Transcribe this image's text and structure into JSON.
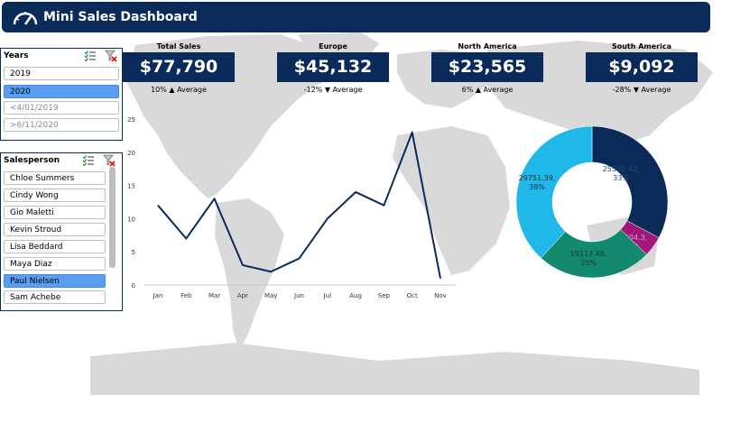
{
  "header": {
    "title": "Mini Sales Dashboard",
    "icon": "gauge-icon"
  },
  "years_slicer": {
    "title": "Years",
    "items": [
      {
        "label": "2019",
        "state": "normal"
      },
      {
        "label": "2020",
        "state": "selected"
      },
      {
        "label": "<4/01/2019",
        "state": "dim"
      },
      {
        "label": ">6/11/2020",
        "state": "dim"
      }
    ]
  },
  "sales_slicer": {
    "title": "Salesperson",
    "items": [
      {
        "label": "Chloe Summers",
        "state": "normal"
      },
      {
        "label": "Cindy Wong",
        "state": "normal"
      },
      {
        "label": "Gio Maletti",
        "state": "normal"
      },
      {
        "label": "Kevin Stroud",
        "state": "normal"
      },
      {
        "label": "Lisa Beddard",
        "state": "normal"
      },
      {
        "label": "Maya Diaz",
        "state": "normal"
      },
      {
        "label": "Paul Nielsen",
        "state": "selected"
      },
      {
        "label": "Sam Achebe",
        "state": "normal"
      }
    ]
  },
  "kpis": [
    {
      "label": "Total Sales",
      "value": "$77,790",
      "sub": "10% ▲ Average"
    },
    {
      "label": "Europe",
      "value": "$45,132",
      "sub": "-12% ▼ Average"
    },
    {
      "label": "North America",
      "value": "$23,565",
      "sub": "6% ▲ Average"
    },
    {
      "label": "South America",
      "value": "$9,092",
      "sub": "-28% ▼ Average"
    }
  ],
  "colors": {
    "navy": "#0a2a5a",
    "map": "#d9d9d9",
    "selected": "#5a9ef2"
  },
  "chart_data": [
    {
      "type": "line",
      "categories": [
        "Jan",
        "Feb",
        "Mar",
        "Apr",
        "May",
        "Jun",
        "Jul",
        "Aug",
        "Sep",
        "Oct",
        "Nov"
      ],
      "values": [
        12,
        7,
        13,
        3,
        2,
        4,
        10,
        14,
        12,
        23,
        1
      ],
      "yticks": [
        0,
        5,
        10,
        15,
        20,
        25
      ],
      "ylim": [
        0,
        25
      ],
      "color": "#0a2a5a"
    },
    {
      "type": "pie",
      "donut": true,
      "slices": [
        {
          "value": 25530.42,
          "label": "25530.42, 33%",
          "color": "#0a2a5a"
        },
        {
          "value": 3404.3,
          "label": "3404.3, 4%",
          "color": "#a0197a"
        },
        {
          "value": 19113.48,
          "label": "19113.48, 25%",
          "color": "#138a6e"
        },
        {
          "value": 29751.39,
          "label": "29751.39, 38%",
          "color": "#1fb8e8"
        }
      ]
    }
  ]
}
